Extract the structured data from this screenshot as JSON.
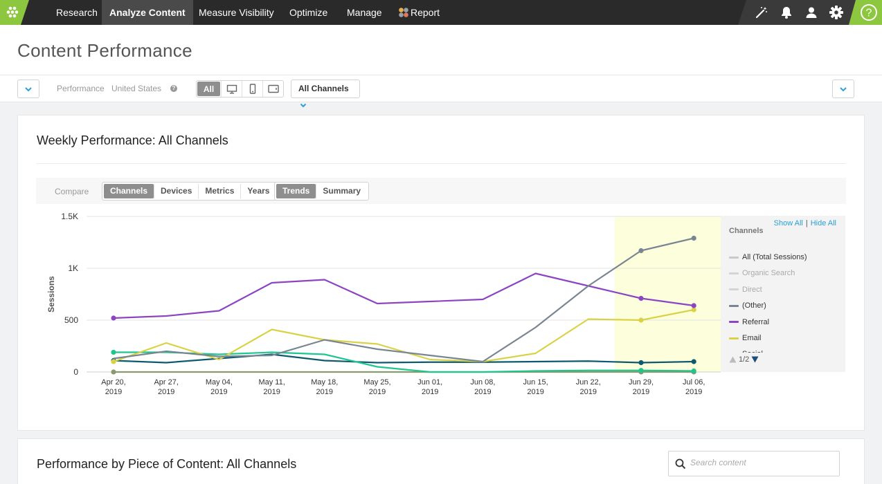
{
  "nav": {
    "items": [
      {
        "label": "Research"
      },
      {
        "label": "Analyze Content"
      },
      {
        "label": "Measure Visibility"
      },
      {
        "label": "Optimize"
      },
      {
        "label": "Manage"
      },
      {
        "label": "Report"
      }
    ],
    "active": "Analyze Content",
    "icons": [
      "magic-wand-icon",
      "bell-icon",
      "user-icon",
      "gear-icon",
      "help-icon"
    ],
    "accent": "#8dc63f"
  },
  "header": {
    "title": "Content Performance"
  },
  "filters": {
    "performance_label": "Performance",
    "country": "United States",
    "device_all": "All",
    "channels": "All Channels"
  },
  "weekly": {
    "title": "Weekly Performance: All Channels",
    "compare_label": "Compare",
    "compare_tabs": [
      "Channels",
      "Devices",
      "Metrics",
      "Years"
    ],
    "view_tabs": [
      "Trends",
      "Summary"
    ]
  },
  "legend": {
    "show_all": "Show All",
    "hide_all": "Hide All",
    "separator": "|",
    "title": "Channels",
    "items": [
      {
        "label": "All (Total Sessions)",
        "color": "#c9c9c9",
        "active": true
      },
      {
        "label": "Organic Search",
        "color": "#d4d4d4",
        "active": false
      },
      {
        "label": "Direct",
        "color": "#d4d4d4",
        "active": false
      },
      {
        "label": "(Other)",
        "color": "#7a8592",
        "active": true
      },
      {
        "label": "Referral",
        "color": "#8b44c2",
        "active": true
      },
      {
        "label": "Email",
        "color": "#d9d246",
        "active": true
      },
      {
        "label": "Social",
        "color": "#9bb6c8",
        "active": true
      }
    ],
    "page": "1/2"
  },
  "chart_data": {
    "type": "line",
    "ylabel": "Sessions",
    "xlabel": "",
    "ylim": [
      0,
      1500
    ],
    "yticks": [
      "0",
      "500",
      "1K",
      "1.5K"
    ],
    "grid": true,
    "categories": [
      [
        "Apr 20,",
        "2019"
      ],
      [
        "Apr 27,",
        "2019"
      ],
      [
        "May 04,",
        "2019"
      ],
      [
        "May 11,",
        "2019"
      ],
      [
        "May 18,",
        "2019"
      ],
      [
        "May 25,",
        "2019"
      ],
      [
        "Jun 01,",
        "2019"
      ],
      [
        "Jun 08,",
        "2019"
      ],
      [
        "Jun 15,",
        "2019"
      ],
      [
        "Jun 22,",
        "2019"
      ],
      [
        "Jun 29,",
        "2019"
      ],
      [
        "Jul 06,",
        "2019"
      ]
    ],
    "highlight_from_index": 9.5,
    "highlight_color": "#fdfedc",
    "series": [
      {
        "name": "(Other)",
        "color": "#7a8592",
        "values": [
          130,
          200,
          150,
          160,
          310,
          220,
          160,
          100,
          430,
          830,
          1170,
          1290
        ],
        "dots": [
          10,
          11
        ]
      },
      {
        "name": "Referral",
        "color": "#8b44c2",
        "values": [
          520,
          540,
          590,
          860,
          890,
          660,
          680,
          700,
          950,
          830,
          710,
          640
        ],
        "dots": [
          0,
          10,
          11
        ]
      },
      {
        "name": "Email",
        "color": "#d9d246",
        "values": [
          100,
          280,
          120,
          410,
          310,
          270,
          120,
          100,
          180,
          510,
          500,
          600
        ],
        "dots": [
          0,
          10,
          11
        ]
      },
      {
        "name": "",
        "color": "#1ec58f",
        "values": [
          190,
          190,
          170,
          190,
          170,
          50,
          0,
          0,
          10,
          15,
          15,
          10
        ],
        "dots": [
          0,
          10,
          11
        ]
      },
      {
        "name": "",
        "color": "#0d5a6e",
        "values": [
          110,
          90,
          130,
          170,
          110,
          90,
          95,
          95,
          100,
          105,
          90,
          100
        ],
        "dots": [
          0,
          10,
          11
        ]
      },
      {
        "name": "",
        "color": "#8a9a6e",
        "values": [
          0,
          0,
          0,
          0,
          0,
          0,
          0,
          0,
          0,
          0,
          0,
          0
        ],
        "dots": [
          0,
          10,
          11
        ]
      }
    ]
  },
  "content": {
    "title": "Performance by Piece of Content: All Channels",
    "search_placeholder": "Search content"
  }
}
